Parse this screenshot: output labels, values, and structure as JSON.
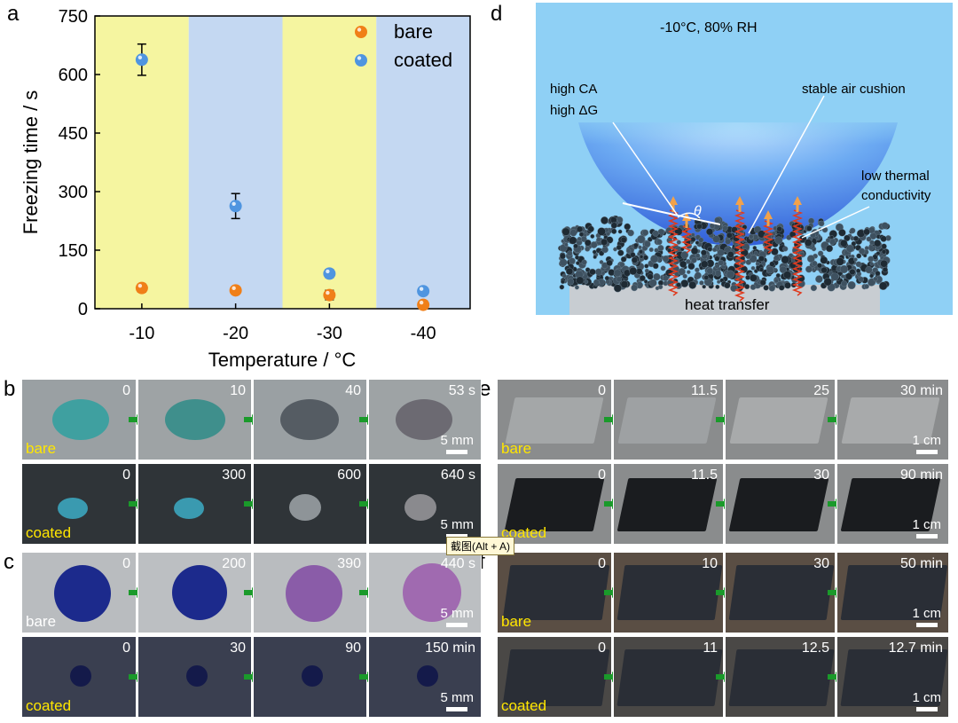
{
  "panel_letters": [
    "a",
    "b",
    "c",
    "d",
    "e",
    "f"
  ],
  "chart_data": {
    "type": "scatter",
    "xlabel": "Temperature / °C",
    "ylabel": "Freezing time / s",
    "categories": [
      "-10",
      "-20",
      "-30",
      "-40"
    ],
    "yticks": [
      "0",
      "150",
      "300",
      "450",
      "600",
      "750"
    ],
    "ylim": [
      0,
      750
    ],
    "background_bands": [
      "#f5f5a0",
      "#c4d8f2",
      "#f5f5a0",
      "#c4d8f2"
    ],
    "legend_position": "top-right",
    "series": [
      {
        "name": "bare",
        "color": "#f07f18",
        "values": [
          53,
          47,
          35,
          10
        ],
        "errors": [
          10,
          8,
          12,
          10
        ]
      },
      {
        "name": "coated",
        "color": "#4f95e0",
        "values": [
          638,
          263,
          90,
          45
        ],
        "errors": [
          40,
          32,
          10,
          8
        ]
      }
    ]
  },
  "schematic_d": {
    "condition": "-10°C, 80% RH",
    "label_high_ca": "high CA",
    "label_high_dg": "high ΔG",
    "label_air_cushion": "stable air cushion",
    "label_low_thermal_1": "low thermal",
    "label_low_thermal_2": "conductivity",
    "label_theta": "θ",
    "label_heat_transfer": "heat transfer"
  },
  "panel_b": {
    "bare_label": "bare",
    "coated_label": "coated",
    "bare_times": [
      "0",
      "10",
      "40",
      "53 s"
    ],
    "coated_times": [
      "0",
      "300",
      "600",
      "640 s"
    ],
    "scale": "5 mm"
  },
  "panel_c": {
    "bare_label": "bare",
    "coated_label": "coated",
    "bare_times": [
      "0",
      "200",
      "390",
      "440 s"
    ],
    "coated_times": [
      "0",
      "30",
      "90",
      "150 min"
    ],
    "scale": "5 mm"
  },
  "panel_e": {
    "bare_label": "bare",
    "coated_label": "coated",
    "bare_times": [
      "0",
      "11.5",
      "25",
      "30 min"
    ],
    "coated_times": [
      "0",
      "11.5",
      "30",
      "90 min"
    ],
    "scale": "1 cm"
  },
  "panel_f": {
    "bare_label": "bare",
    "coated_label": "coated",
    "bare_times": [
      "0",
      "10",
      "30",
      "50 min"
    ],
    "coated_times": [
      "0",
      "11",
      "12.5",
      "12.7 min"
    ],
    "scale": "1 cm"
  },
  "tooltip": "截图(Alt + A)"
}
